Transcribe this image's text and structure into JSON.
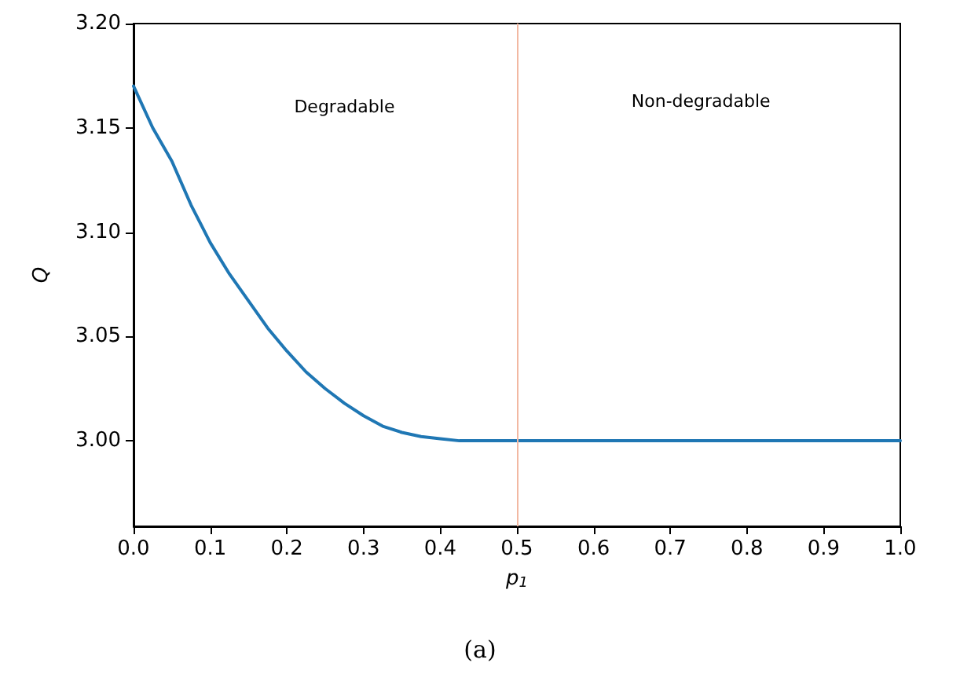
{
  "chart_data": {
    "type": "line",
    "xlabel": "p$_{1}$",
    "ylabel": "Q",
    "x": [
      0,
      0.025,
      0.05,
      0.075,
      0.1,
      0.125,
      0.15,
      0.175,
      0.2,
      0.225,
      0.25,
      0.275,
      0.3,
      0.325,
      0.35,
      0.375,
      0.4,
      0.425,
      0.45,
      0.5,
      0.6,
      0.7,
      0.8,
      0.9,
      1.0
    ],
    "series": [
      {
        "color": "#1f77b4",
        "values": [
          3.17,
          3.15,
          3.134,
          3.113,
          3.095,
          3.08,
          3.067,
          3.054,
          3.043,
          3.033,
          3.025,
          3.018,
          3.012,
          3.007,
          3.004,
          3.002,
          3.001,
          3.0,
          3.0,
          3.0,
          3.0,
          3.0,
          3.0,
          3.0,
          3.0
        ]
      }
    ],
    "xlim": [
      0,
      1
    ],
    "xticks": [
      {
        "value": 0,
        "label": "0.0"
      },
      {
        "value": 0.1,
        "label": "0.1"
      },
      {
        "value": 0.2,
        "label": "0.2"
      },
      {
        "value": 0.3,
        "label": "0.3"
      },
      {
        "value": 0.4,
        "label": "0.4"
      },
      {
        "value": 0.5,
        "label": "0.5"
      },
      {
        "value": 0.6,
        "label": "0.6"
      },
      {
        "value": 0.7,
        "label": "0.7"
      },
      {
        "value": 0.8,
        "label": "0.8"
      },
      {
        "value": 0.9,
        "label": "0.9"
      },
      {
        "value": 1,
        "label": "1.0"
      }
    ],
    "ylim": [
      2.959,
      3.2
    ],
    "yticks": [
      {
        "value": 3,
        "label": "3.00"
      },
      {
        "value": 3.05,
        "label": "3.05"
      },
      {
        "value": 3.1,
        "label": "3.10"
      },
      {
        "value": 3.15,
        "label": "3.15"
      },
      {
        "value": 3.2,
        "label": "3.20"
      }
    ],
    "ref_lines": [
      {
        "axis": "x",
        "value": 0.5,
        "color": "#f2b8a2"
      }
    ],
    "annotations": [
      "Degradable",
      "Non-degradable",
      "(a)"
    ],
    "grid": false,
    "marker": "none",
    "line_style": "solid"
  }
}
